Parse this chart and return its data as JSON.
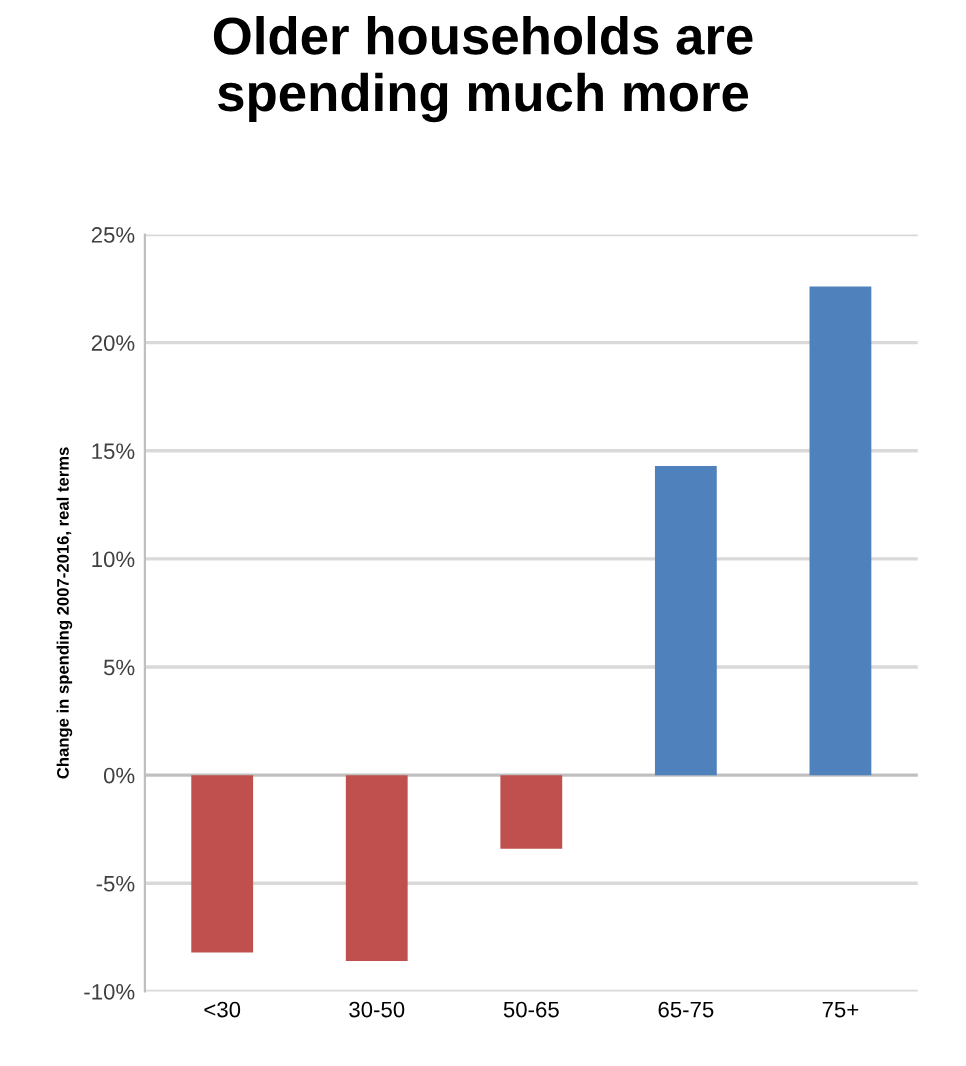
{
  "chart_data": {
    "type": "bar",
    "title": "Older households are\nspending much more",
    "ylabel": "Change in spending 2007-2016, real terms",
    "categories": [
      "<30",
      "30-50",
      "50-65",
      "65-75",
      "75+"
    ],
    "values": [
      -8.2,
      -8.6,
      -3.4,
      14.3,
      22.6
    ],
    "colors": [
      "#c0504d",
      "#c0504d",
      "#c0504d",
      "#4f81bd",
      "#4f81bd"
    ],
    "ylim": [
      -10,
      25
    ],
    "yticks": [
      {
        "value": -10,
        "label": "-10%"
      },
      {
        "value": -5,
        "label": "-5%"
      },
      {
        "value": 0,
        "label": "0%"
      },
      {
        "value": 5,
        "label": "5%"
      },
      {
        "value": 10,
        "label": "10%"
      },
      {
        "value": 15,
        "label": "15%"
      },
      {
        "value": 20,
        "label": "20%"
      },
      {
        "value": 25,
        "label": "25%"
      }
    ],
    "grid": "y"
  }
}
